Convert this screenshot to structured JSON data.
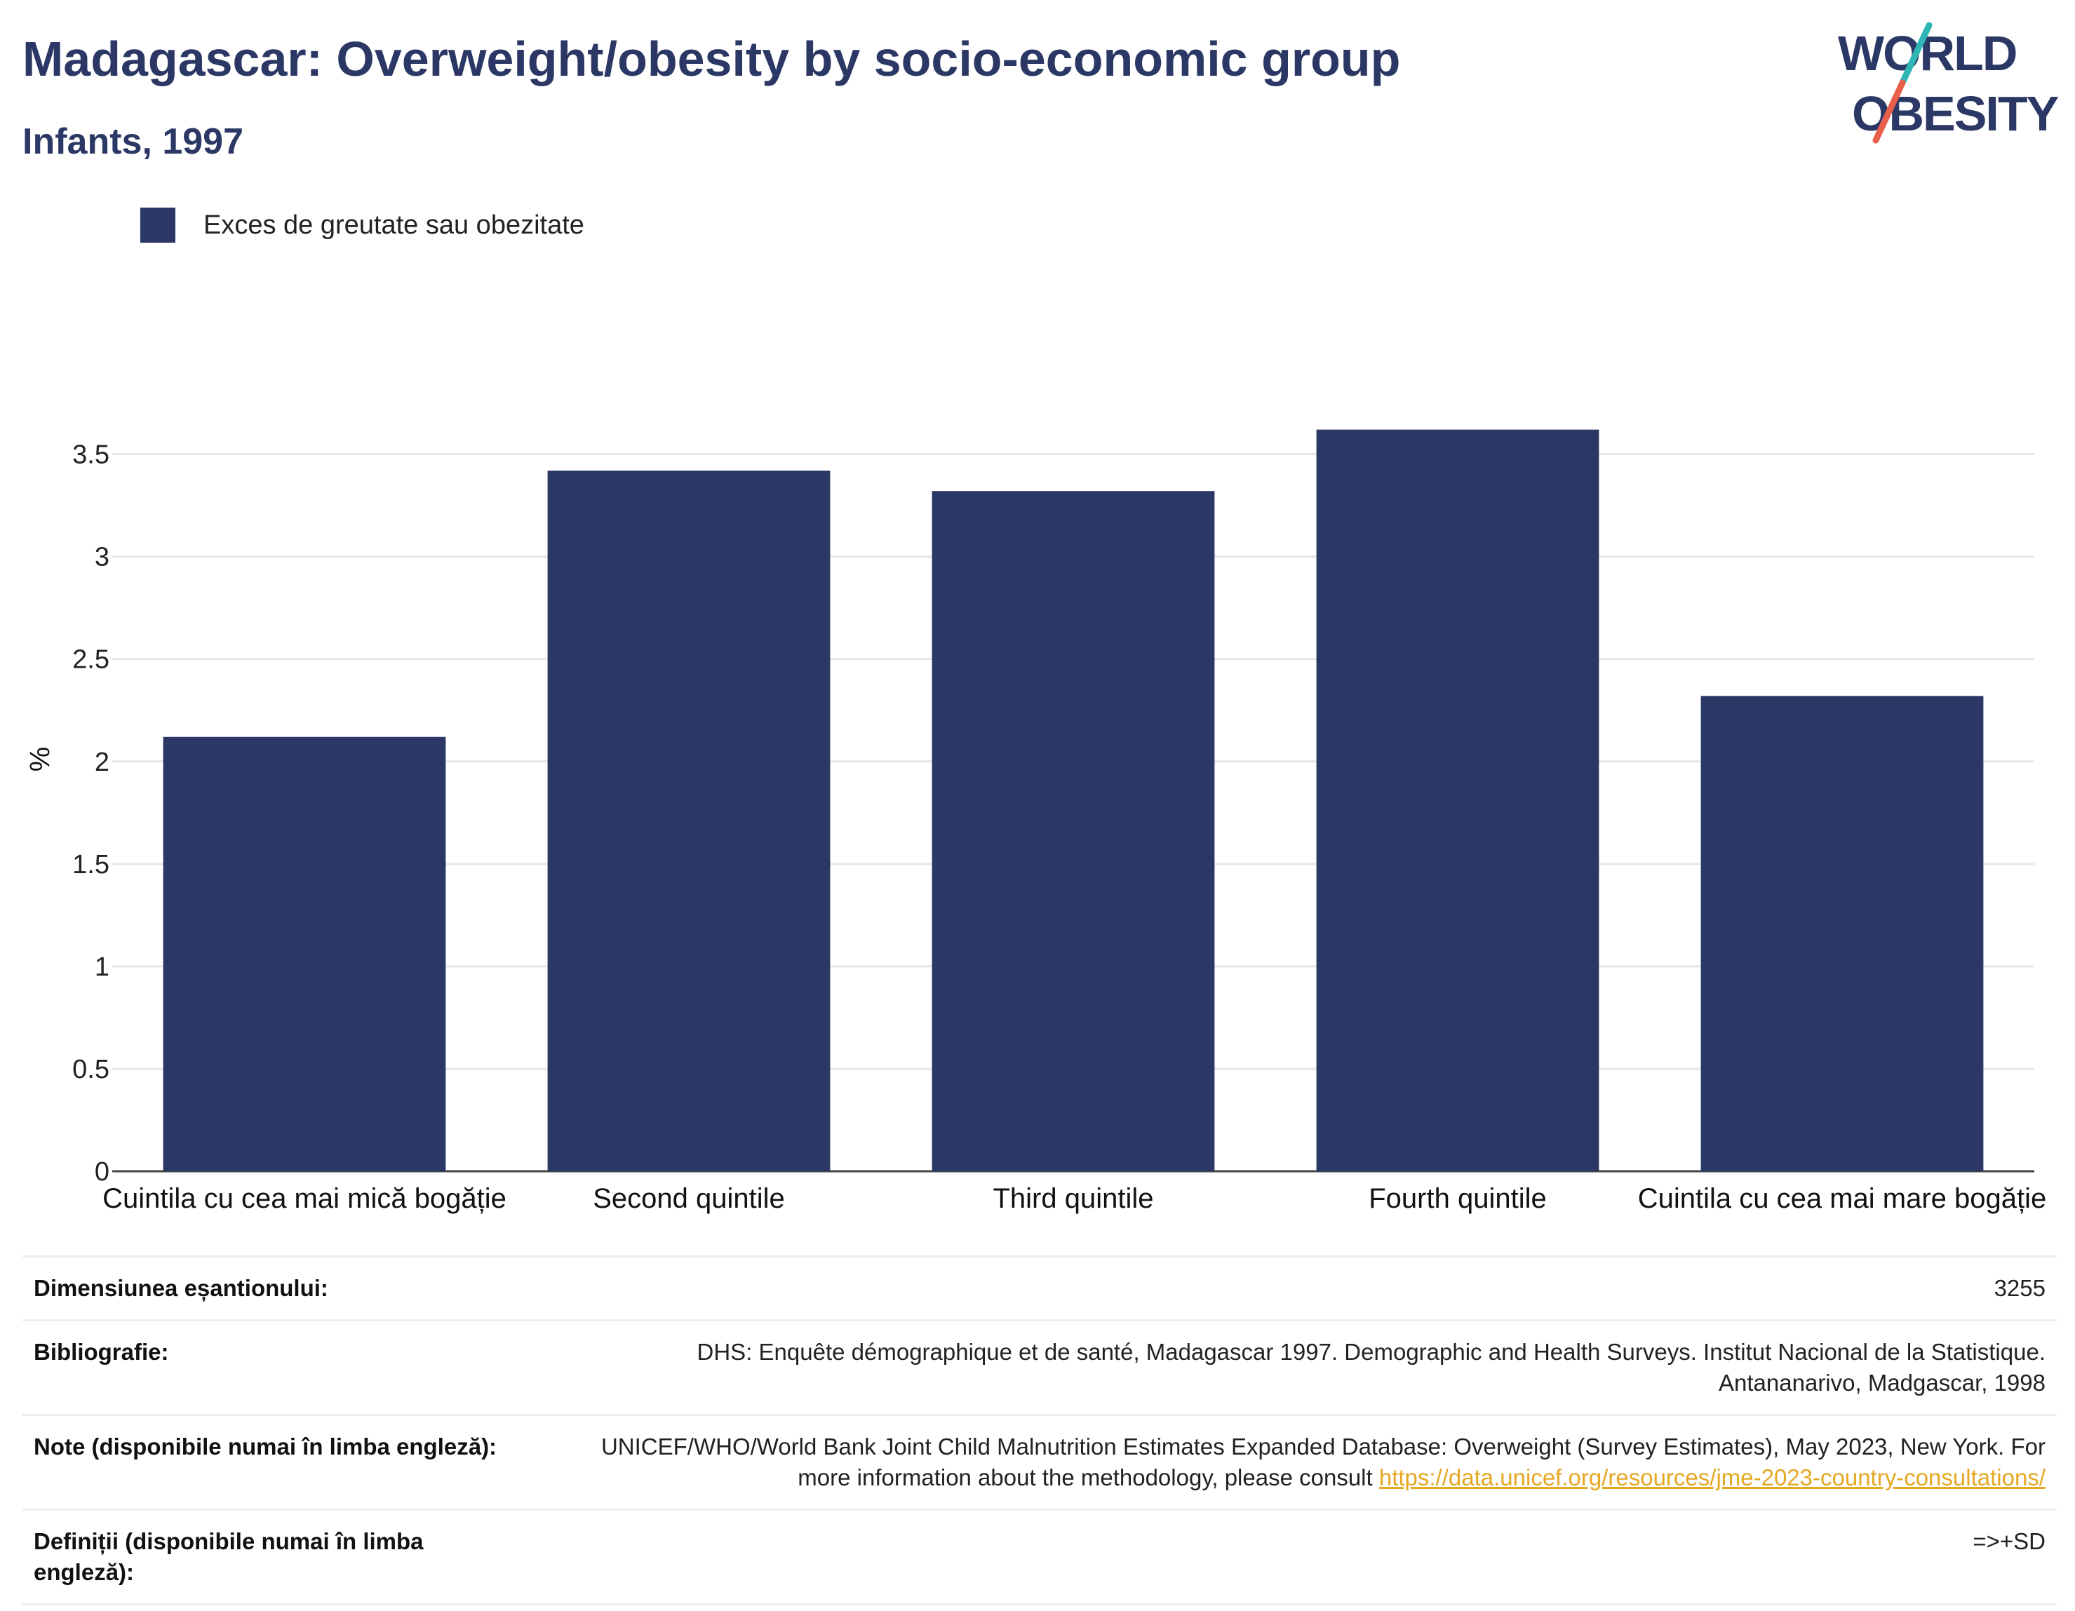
{
  "header": {
    "title": "Madagascar: Overweight/obesity by socio-economic group",
    "subtitle": "Infants, 1997"
  },
  "logo": {
    "line1": "WORLD",
    "line2": "OBESITY",
    "colors": {
      "text": "#2b3764",
      "slash_teal": "#2fb5b5",
      "slash_coral": "#e8604c"
    }
  },
  "legend": {
    "label": "Exces de greutate sau obezitate",
    "color": "#2b3764"
  },
  "chart_data": {
    "type": "bar",
    "categories": [
      "Cuintila cu cea mai mică bogăție",
      "Second quintile",
      "Third quintile",
      "Fourth quintile",
      "Cuintila cu cea mai mare bogăție"
    ],
    "series": [
      {
        "name": "Exces de greutate sau obezitate",
        "values": [
          2.12,
          3.42,
          3.32,
          3.62,
          2.32
        ],
        "color": "#2b3764"
      }
    ],
    "ylabel": "%",
    "ylim": [
      0,
      3.8
    ],
    "yticks": [
      "0",
      "0.5",
      "1",
      "1.5",
      "2",
      "2.5",
      "3",
      "3.5"
    ],
    "grid": true,
    "legend_position": "top-left"
  },
  "info": {
    "sample_label": "Dimensiunea eșantionului:",
    "sample_value": "3255",
    "biblio_label": "Bibliografie:",
    "biblio_value": "DHS: Enquête démographique et de santé, Madagascar 1997. Demographic and Health Surveys. Institut Nacional de la Statistique. Antananarivo, Madgascar, 1998",
    "notes_label": "Note (disponibile numai în limba engleză):",
    "notes_value": "UNICEF/WHO/World Bank Joint Child Malnutrition Estimates Expanded Database: Overweight (Survey Estimates), May 2023, New York. For more information about the methodology, please consult ",
    "notes_link": "https://data.unicef.org/resources/jme-2023-country-consultations/",
    "defs_label": "Definiții (disponibile numai în limba engleză):",
    "defs_value": "=>+SD"
  }
}
